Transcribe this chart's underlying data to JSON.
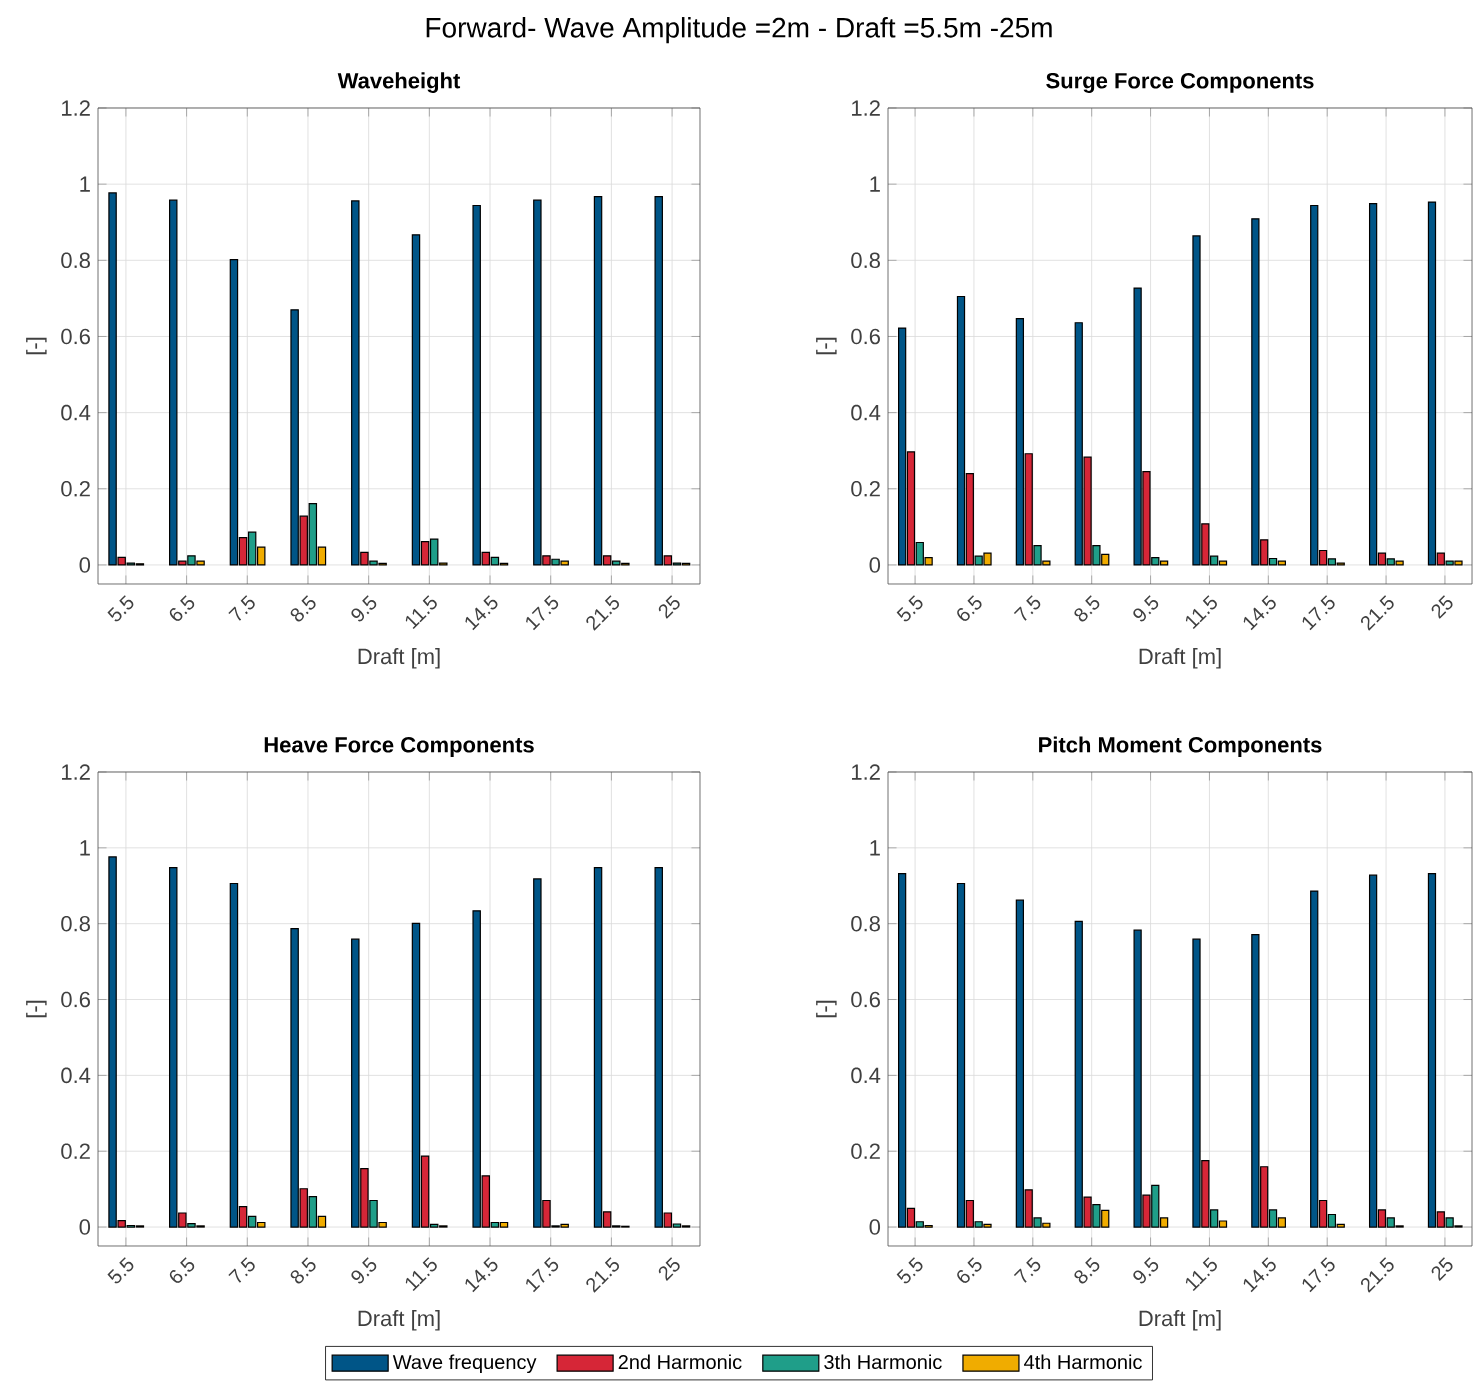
{
  "chart_data": [
    {
      "type": "bar",
      "title": "Waveheight",
      "annotations": [
        "Forward- Wave Amplitude =2m - Draft =5.5m -25m"
      ],
      "xlabel": "Draft [m]",
      "ylabel": "[-]",
      "categories": [
        "5.5",
        "6.5",
        "7.5",
        "8.5",
        "9.5",
        "11.5",
        "14.5",
        "17.5",
        "21.5",
        "25"
      ],
      "ylim": [
        -0.05,
        1.2
      ],
      "yticks": [
        0,
        0.2,
        0.4,
        0.6,
        0.8,
        1,
        1.2
      ],
      "grid": true,
      "legend": false,
      "series": [
        {
          "color": "#005587",
          "values": [
            0.977,
            0.958,
            0.802,
            0.67,
            0.956,
            0.867,
            0.944,
            0.958,
            0.967,
            0.967
          ]
        },
        {
          "color": "#d62637",
          "values": [
            0.02,
            0.01,
            0.072,
            0.128,
            0.033,
            0.061,
            0.033,
            0.024,
            0.024,
            0.024
          ]
        },
        {
          "color": "#1f9e89",
          "values": [
            0.005,
            0.024,
            0.086,
            0.161,
            0.01,
            0.068,
            0.02,
            0.015,
            0.01,
            0.005
          ]
        },
        {
          "color": "#f0ac00",
          "values": [
            0.003,
            0.01,
            0.047,
            0.047,
            0.004,
            0.005,
            0.004,
            0.01,
            0.004,
            0.004
          ]
        }
      ]
    },
    {
      "type": "bar",
      "title": "Surge Force Components",
      "xlabel": "Draft [m]",
      "ylabel": "[-]",
      "categories": [
        "5.5",
        "6.5",
        "7.5",
        "8.5",
        "9.5",
        "11.5",
        "14.5",
        "17.5",
        "21.5",
        "25"
      ],
      "ylim": [
        -0.05,
        1.2
      ],
      "yticks": [
        0,
        0.2,
        0.4,
        0.6,
        0.8,
        1,
        1.2
      ],
      "grid": true,
      "legend": false,
      "series": [
        {
          "color": "#005587",
          "values": [
            0.622,
            0.705,
            0.647,
            0.636,
            0.727,
            0.864,
            0.909,
            0.944,
            0.949,
            0.953
          ]
        },
        {
          "color": "#d62637",
          "values": [
            0.297,
            0.24,
            0.292,
            0.283,
            0.245,
            0.108,
            0.066,
            0.038,
            0.031,
            0.031
          ]
        },
        {
          "color": "#1f9e89",
          "values": [
            0.059,
            0.023,
            0.051,
            0.051,
            0.019,
            0.023,
            0.017,
            0.016,
            0.016,
            0.01
          ]
        },
        {
          "color": "#f0ac00",
          "values": [
            0.019,
            0.031,
            0.01,
            0.028,
            0.01,
            0.01,
            0.01,
            0.005,
            0.01,
            0.01
          ]
        }
      ]
    },
    {
      "type": "bar",
      "title": "Heave Force Components",
      "xlabel": "Draft [m]",
      "ylabel": "[-]",
      "categories": [
        "5.5",
        "6.5",
        "7.5",
        "8.5",
        "9.5",
        "11.5",
        "14.5",
        "17.5",
        "21.5",
        "25"
      ],
      "ylim": [
        -0.05,
        1.2
      ],
      "yticks": [
        0,
        0.2,
        0.4,
        0.6,
        0.8,
        1,
        1.2
      ],
      "grid": true,
      "legend": false,
      "series": [
        {
          "color": "#005587",
          "values": [
            0.976,
            0.948,
            0.906,
            0.787,
            0.759,
            0.801,
            0.834,
            0.918,
            0.948,
            0.948
          ]
        },
        {
          "color": "#d62637",
          "values": [
            0.017,
            0.037,
            0.054,
            0.101,
            0.154,
            0.187,
            0.135,
            0.07,
            0.04,
            0.037
          ]
        },
        {
          "color": "#1f9e89",
          "values": [
            0.004,
            0.009,
            0.028,
            0.08,
            0.07,
            0.007,
            0.012,
            0.003,
            0.003,
            0.008
          ]
        },
        {
          "color": "#f0ac00",
          "values": [
            0.003,
            0.003,
            0.012,
            0.028,
            0.012,
            0.003,
            0.012,
            0.007,
            0.002,
            0.003
          ]
        }
      ]
    },
    {
      "type": "bar",
      "title": "Pitch Moment Components",
      "xlabel": "Draft [m]",
      "ylabel": "[-]",
      "categories": [
        "5.5",
        "6.5",
        "7.5",
        "8.5",
        "9.5",
        "11.5",
        "14.5",
        "17.5",
        "21.5",
        "25"
      ],
      "ylim": [
        -0.05,
        1.2
      ],
      "yticks": [
        0,
        0.2,
        0.4,
        0.6,
        0.8,
        1,
        1.2
      ],
      "grid": true,
      "legend": "bottom",
      "series": [
        {
          "name": "Wave frequency",
          "color": "#005587",
          "values": [
            0.932,
            0.906,
            0.862,
            0.806,
            0.783,
            0.759,
            0.771,
            0.886,
            0.928,
            0.932
          ]
        },
        {
          "name": "2nd Harmonic",
          "color": "#d62637",
          "values": [
            0.049,
            0.07,
            0.098,
            0.079,
            0.084,
            0.175,
            0.159,
            0.07,
            0.045,
            0.04
          ]
        },
        {
          "name": "3th Harmonic",
          "color": "#1f9e89",
          "values": [
            0.014,
            0.014,
            0.024,
            0.059,
            0.11,
            0.045,
            0.045,
            0.033,
            0.024,
            0.024
          ]
        },
        {
          "name": "4th Harmonic",
          "color": "#f0ac00",
          "values": [
            0.004,
            0.007,
            0.01,
            0.044,
            0.024,
            0.016,
            0.024,
            0.007,
            0.003,
            0.003
          ]
        }
      ]
    }
  ]
}
